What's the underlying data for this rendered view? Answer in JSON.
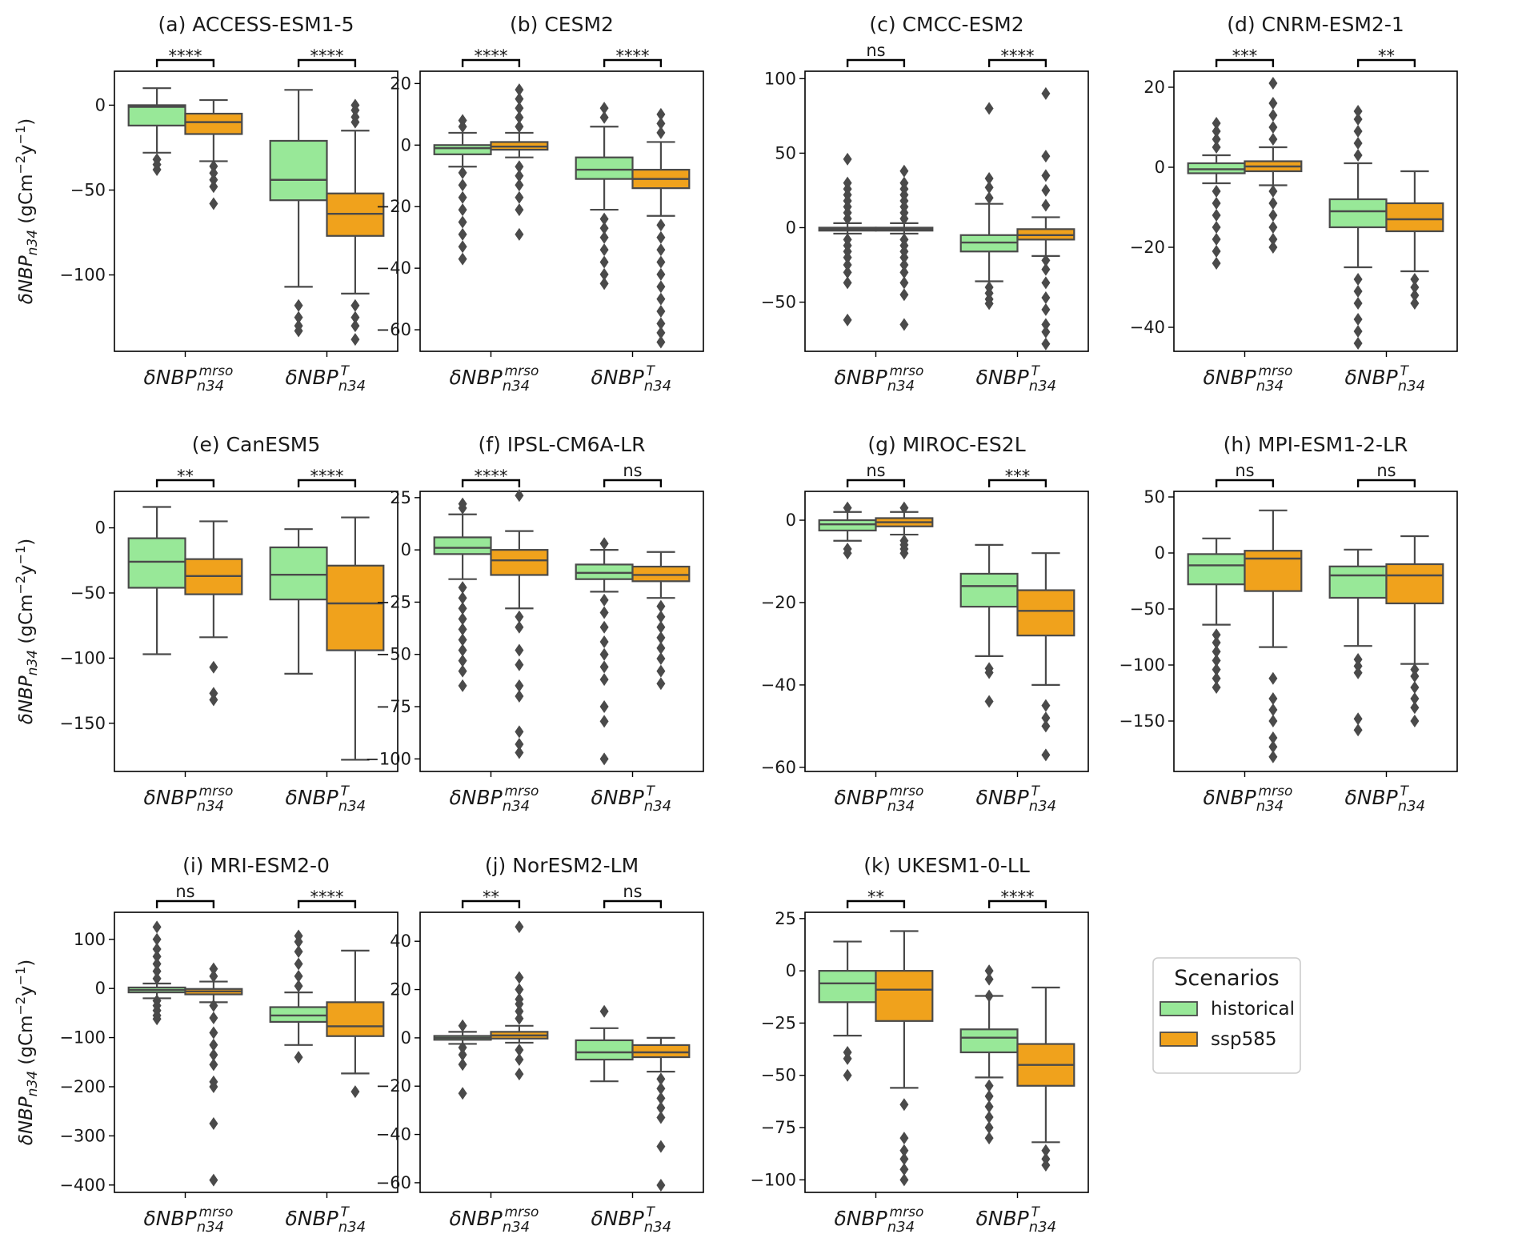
{
  "figure": {
    "ylabel": "δNBPn34 (gCm−2y−1)",
    "legend": {
      "title": "Scenarios",
      "items": [
        {
          "label": "historical",
          "color": "#98e898"
        },
        {
          "label": "ssp585",
          "color": "#f0a21c"
        }
      ]
    }
  },
  "chart_data": [
    {
      "type": "box",
      "title": "(a) ACCESS-ESM1-5",
      "categories": [
        "δNBPn34 mrso",
        "δNBPn34 T"
      ],
      "ylim": [
        -145,
        20
      ],
      "yticks": [
        0,
        -50,
        -100
      ],
      "significance": [
        "****",
        "****"
      ],
      "boxes": [
        {
          "category": 0,
          "scenario": "historical",
          "q1": -12,
          "median": -1,
          "q3": 0,
          "whislo": -28,
          "whishi": 10,
          "fliers": [
            -32,
            -35,
            -38
          ]
        },
        {
          "category": 0,
          "scenario": "ssp585",
          "q1": -17,
          "median": -10,
          "q3": -5,
          "whislo": -33,
          "whishi": 3,
          "fliers": [
            -36,
            -40,
            -44,
            -48,
            -58
          ]
        },
        {
          "category": 1,
          "scenario": "historical",
          "q1": -56,
          "median": -44,
          "q3": -21,
          "whislo": -107,
          "whishi": 9,
          "fliers": [
            -118,
            -125,
            -130,
            -133
          ]
        },
        {
          "category": 1,
          "scenario": "ssp585",
          "q1": -77,
          "median": -64,
          "q3": -52,
          "whislo": -111,
          "whishi": -15,
          "fliers": [
            -10,
            -7,
            -3,
            0,
            -118,
            -125,
            -130,
            -138
          ]
        }
      ]
    },
    {
      "type": "box",
      "title": "(b) CESM2",
      "categories": [
        "δNBPn34 mrso",
        "δNBPn34 T"
      ],
      "ylim": [
        -67,
        24
      ],
      "yticks": [
        20,
        0,
        -20,
        -40,
        -60
      ],
      "significance": [
        "****",
        "****"
      ],
      "boxes": [
        {
          "category": 0,
          "scenario": "historical",
          "q1": -3,
          "median": -1,
          "q3": 0,
          "whislo": -7,
          "whishi": 4,
          "fliers": [
            6,
            8,
            -9,
            -13,
            -17,
            -21,
            -25,
            -29,
            -33,
            -37
          ]
        },
        {
          "category": 0,
          "scenario": "ssp585",
          "q1": -1.5,
          "median": -0.5,
          "q3": 1,
          "whislo": -4,
          "whishi": 4,
          "fliers": [
            6,
            9,
            12,
            15,
            18,
            -7,
            -10,
            -13,
            -17,
            -21,
            -29
          ]
        },
        {
          "category": 1,
          "scenario": "historical",
          "q1": -11,
          "median": -8,
          "q3": -4,
          "whislo": -21,
          "whishi": 6,
          "fliers": [
            9,
            12,
            -24,
            -27,
            -30,
            -34,
            -38,
            -42,
            -45
          ]
        },
        {
          "category": 1,
          "scenario": "ssp585",
          "q1": -14,
          "median": -11,
          "q3": -8,
          "whislo": -23,
          "whishi": 1,
          "fliers": [
            4,
            7,
            10,
            -26,
            -30,
            -34,
            -38,
            -42,
            -46,
            -50,
            -54,
            -58,
            -61,
            -64
          ]
        }
      ]
    },
    {
      "type": "box",
      "title": "(c) CMCC-ESM2",
      "categories": [
        "δNBPn34 mrso",
        "δNBPn34 T"
      ],
      "ylim": [
        -83,
        105
      ],
      "yticks": [
        100,
        50,
        0,
        -50
      ],
      "significance": [
        "ns",
        "****"
      ],
      "boxes": [
        {
          "category": 0,
          "scenario": "historical",
          "q1": -2,
          "median": -1,
          "q3": 0,
          "whislo": -4,
          "whishi": 3,
          "fliers": [
            6,
            10,
            14,
            18,
            22,
            26,
            30,
            46,
            -8,
            -12,
            -16,
            -20,
            -25,
            -30,
            -37,
            -62
          ]
        },
        {
          "category": 0,
          "scenario": "ssp585",
          "q1": -2,
          "median": -1,
          "q3": 0,
          "whislo": -4,
          "whishi": 3,
          "fliers": [
            6,
            10,
            14,
            18,
            22,
            26,
            30,
            38,
            -8,
            -12,
            -16,
            -20,
            -25,
            -30,
            -37,
            -45,
            -65
          ]
        },
        {
          "category": 1,
          "scenario": "historical",
          "q1": -16,
          "median": -10,
          "q3": -5,
          "whislo": -36,
          "whishi": 16,
          "fliers": [
            20,
            27,
            33,
            80,
            -40,
            -44,
            -48,
            -51
          ]
        },
        {
          "category": 1,
          "scenario": "ssp585",
          "q1": -8,
          "median": -5,
          "q3": -1,
          "whislo": -19,
          "whishi": 7,
          "fliers": [
            15,
            25,
            35,
            48,
            90,
            -22,
            -28,
            -37,
            -47,
            -55,
            -65,
            -70,
            -78
          ]
        }
      ]
    },
    {
      "type": "box",
      "title": "(d) CNRM-ESM2-1",
      "categories": [
        "δNBPn34 mrso",
        "δNBPn34 T"
      ],
      "ylim": [
        -46,
        24
      ],
      "yticks": [
        20,
        0,
        -20,
        -40
      ],
      "significance": [
        "***",
        "**"
      ],
      "boxes": [
        {
          "category": 0,
          "scenario": "historical",
          "q1": -1.5,
          "median": -0.5,
          "q3": 1,
          "whislo": -4,
          "whishi": 3,
          "fliers": [
            5,
            7,
            9,
            11,
            -6,
            -9,
            -12,
            -15,
            -18,
            -21,
            -24
          ]
        },
        {
          "category": 0,
          "scenario": "ssp585",
          "q1": -1,
          "median": 0.2,
          "q3": 1.5,
          "whislo": -4.5,
          "whishi": 5,
          "fliers": [
            7,
            10,
            13,
            16,
            21,
            -6,
            -9,
            -12,
            -15,
            -18,
            -20
          ]
        },
        {
          "category": 1,
          "scenario": "historical",
          "q1": -15,
          "median": -11,
          "q3": -8,
          "whislo": -25,
          "whishi": 1,
          "fliers": [
            3,
            6,
            9,
            12,
            14,
            -28,
            -31,
            -34,
            -38,
            -41,
            -44
          ]
        },
        {
          "category": 1,
          "scenario": "ssp585",
          "q1": -16,
          "median": -13,
          "q3": -9,
          "whislo": -26,
          "whishi": -1,
          "fliers": [
            -28,
            -30,
            -32,
            -34
          ]
        }
      ]
    },
    {
      "type": "box",
      "title": "(e) CanESM5",
      "categories": [
        "δNBPn34 mrso",
        "δNBPn34 T"
      ],
      "ylim": [
        -187,
        28
      ],
      "yticks": [
        0,
        -50,
        -100,
        -150
      ],
      "significance": [
        "**",
        "****"
      ],
      "boxes": [
        {
          "category": 0,
          "scenario": "historical",
          "q1": -46,
          "median": -26,
          "q3": -8,
          "whislo": -97,
          "whishi": 16,
          "fliers": []
        },
        {
          "category": 0,
          "scenario": "ssp585",
          "q1": -51,
          "median": -37,
          "q3": -24,
          "whislo": -84,
          "whishi": 5,
          "fliers": [
            -107,
            -127,
            -132
          ]
        },
        {
          "category": 1,
          "scenario": "historical",
          "q1": -55,
          "median": -36,
          "q3": -15,
          "whislo": -112,
          "whishi": -1,
          "fliers": []
        },
        {
          "category": 1,
          "scenario": "ssp585",
          "q1": -94,
          "median": -58,
          "q3": -29,
          "whislo": -178,
          "whishi": 8,
          "fliers": []
        }
      ]
    },
    {
      "type": "box",
      "title": "(f) IPSL-CM6A-LR",
      "categories": [
        "δNBPn34 mrso",
        "δNBPn34 T"
      ],
      "ylim": [
        -106,
        28
      ],
      "yticks": [
        25,
        0,
        -25,
        -50,
        -75,
        -100
      ],
      "significance": [
        "****",
        "ns"
      ],
      "boxes": [
        {
          "category": 0,
          "scenario": "historical",
          "q1": -2,
          "median": 1,
          "q3": 6,
          "whislo": -14,
          "whishi": 17,
          "fliers": [
            20,
            22,
            -18,
            -23,
            -28,
            -33,
            -38,
            -43,
            -48,
            -53,
            -58,
            -65
          ]
        },
        {
          "category": 0,
          "scenario": "ssp585",
          "q1": -12,
          "median": -5,
          "q3": 0,
          "whislo": -28,
          "whishi": 9,
          "fliers": [
            26,
            -32,
            -37,
            -48,
            -55,
            -65,
            -70,
            -87,
            -93,
            -97
          ]
        },
        {
          "category": 1,
          "scenario": "historical",
          "q1": -14,
          "median": -11,
          "q3": -7,
          "whislo": -20,
          "whishi": 0,
          "fliers": [
            3,
            -24,
            -30,
            -37,
            -44,
            -50,
            -56,
            -62,
            -75,
            -82,
            -100
          ]
        },
        {
          "category": 1,
          "scenario": "ssp585",
          "q1": -15,
          "median": -12,
          "q3": -8,
          "whislo": -23,
          "whishi": -1,
          "fliers": [
            -27,
            -32,
            -37,
            -42,
            -47,
            -52,
            -58,
            -64
          ]
        }
      ]
    },
    {
      "type": "box",
      "title": "(g) MIROC-ES2L",
      "categories": [
        "δNBPn34 mrso",
        "δNBPn34 T"
      ],
      "ylim": [
        -61,
        7
      ],
      "yticks": [
        0,
        -20,
        -40,
        -60
      ],
      "significance": [
        "ns",
        "***"
      ],
      "boxes": [
        {
          "category": 0,
          "scenario": "historical",
          "q1": -2.5,
          "median": -1,
          "q3": 0,
          "whislo": -5,
          "whishi": 2,
          "fliers": [
            3,
            -7,
            -8
          ]
        },
        {
          "category": 0,
          "scenario": "ssp585",
          "q1": -1.5,
          "median": -0.5,
          "q3": 0.5,
          "whislo": -3.5,
          "whishi": 2,
          "fliers": [
            3,
            -5,
            -6,
            -7,
            -8
          ]
        },
        {
          "category": 1,
          "scenario": "historical",
          "q1": -21,
          "median": -16,
          "q3": -13,
          "whislo": -33,
          "whishi": -6,
          "fliers": [
            -36,
            -37,
            -44
          ]
        },
        {
          "category": 1,
          "scenario": "ssp585",
          "q1": -28,
          "median": -22,
          "q3": -17,
          "whislo": -40,
          "whishi": -8,
          "fliers": [
            -45,
            -48,
            -50,
            -57
          ]
        }
      ]
    },
    {
      "type": "box",
      "title": "(h) MPI-ESM1-2-LR",
      "categories": [
        "δNBPn34 mrso",
        "δNBPn34 T"
      ],
      "ylim": [
        -195,
        55
      ],
      "yticks": [
        50,
        0,
        -50,
        -100,
        -150
      ],
      "significance": [
        "ns",
        "ns"
      ],
      "boxes": [
        {
          "category": 0,
          "scenario": "historical",
          "q1": -28,
          "median": -11,
          "q3": -1,
          "whislo": -64,
          "whishi": 13,
          "fliers": [
            -73,
            -80,
            -88,
            -96,
            -104,
            -112,
            -120
          ]
        },
        {
          "category": 0,
          "scenario": "ssp585",
          "q1": -34,
          "median": -5,
          "q3": 2,
          "whislo": -84,
          "whishi": 38,
          "fliers": [
            -112,
            -130,
            -140,
            -150,
            -165,
            -173,
            -182
          ]
        },
        {
          "category": 1,
          "scenario": "historical",
          "q1": -40,
          "median": -20,
          "q3": -12,
          "whislo": -83,
          "whishi": 3,
          "fliers": [
            -95,
            -101,
            -107,
            -148,
            -158
          ]
        },
        {
          "category": 1,
          "scenario": "ssp585",
          "q1": -45,
          "median": -20,
          "q3": -10,
          "whislo": -99,
          "whishi": 15,
          "fliers": [
            -104,
            -110,
            -120,
            -130,
            -138,
            -150
          ]
        }
      ]
    },
    {
      "type": "box",
      "title": "(i) MRI-ESM2-0",
      "categories": [
        "δNBPn34 mrso",
        "δNBPn34 T"
      ],
      "ylim": [
        -415,
        155
      ],
      "yticks": [
        100,
        0,
        -100,
        -200,
        -300,
        -400
      ],
      "significance": [
        "ns",
        "****"
      ],
      "boxes": [
        {
          "category": 0,
          "scenario": "historical",
          "q1": -8,
          "median": -3,
          "q3": 2,
          "whislo": -20,
          "whishi": 10,
          "fliers": [
            20,
            35,
            50,
            65,
            80,
            100,
            125,
            -25,
            -35,
            -45,
            -55,
            -62
          ]
        },
        {
          "category": 0,
          "scenario": "ssp585",
          "q1": -12,
          "median": -6,
          "q3": -1,
          "whislo": -28,
          "whishi": 14,
          "fliers": [
            25,
            40,
            -35,
            -60,
            -90,
            -115,
            -135,
            -155,
            -190,
            -200,
            -275,
            -390
          ]
        },
        {
          "category": 1,
          "scenario": "historical",
          "q1": -68,
          "median": -55,
          "q3": -38,
          "whislo": -115,
          "whishi": -8,
          "fliers": [
            5,
            25,
            50,
            75,
            95,
            107,
            -140
          ]
        },
        {
          "category": 1,
          "scenario": "ssp585",
          "q1": -97,
          "median": -77,
          "q3": -28,
          "whislo": -173,
          "whishi": 77,
          "fliers": [
            -210
          ]
        }
      ]
    },
    {
      "type": "box",
      "title": "(j) NorESM2-LM",
      "categories": [
        "δNBPn34 mrso",
        "δNBPn34 T"
      ],
      "ylim": [
        -64,
        52
      ],
      "yticks": [
        40,
        20,
        0,
        -20,
        -40,
        -60
      ],
      "significance": [
        "**",
        "ns"
      ],
      "boxes": [
        {
          "category": 0,
          "scenario": "historical",
          "q1": -0.8,
          "median": 0,
          "q3": 0.8,
          "whislo": -2.5,
          "whishi": 2.5,
          "fliers": [
            5,
            -4,
            -7,
            -11,
            -23
          ]
        },
        {
          "category": 0,
          "scenario": "ssp585",
          "q1": -0.3,
          "median": 1,
          "q3": 2.5,
          "whislo": -2,
          "whishi": 5,
          "fliers": [
            8,
            11,
            14,
            16,
            20,
            25,
            46,
            -5,
            -9,
            -15
          ]
        },
        {
          "category": 1,
          "scenario": "historical",
          "q1": -9,
          "median": -6,
          "q3": -1,
          "whislo": -18,
          "whishi": 4,
          "fliers": [
            11
          ]
        },
        {
          "category": 1,
          "scenario": "ssp585",
          "q1": -8,
          "median": -6,
          "q3": -3,
          "whislo": -14,
          "whishi": 0,
          "fliers": [
            -17,
            -21,
            -25,
            -29,
            -33,
            -45,
            -61
          ]
        }
      ]
    },
    {
      "type": "box",
      "title": "(k) UKESM1-0-LL",
      "categories": [
        "δNBPn34 mrso",
        "δNBPn34 T"
      ],
      "ylim": [
        -106,
        28
      ],
      "yticks": [
        25,
        0,
        -25,
        -50,
        -75,
        -100
      ],
      "significance": [
        "**",
        "****"
      ],
      "boxes": [
        {
          "category": 0,
          "scenario": "historical",
          "q1": -15,
          "median": -6,
          "q3": 0,
          "whislo": -31,
          "whishi": 14,
          "fliers": [
            -39,
            -42,
            -50
          ]
        },
        {
          "category": 0,
          "scenario": "ssp585",
          "q1": -24,
          "median": -9,
          "q3": 0,
          "whislo": -56,
          "whishi": 19,
          "fliers": [
            -64,
            -80,
            -86,
            -90,
            -95,
            -100
          ]
        },
        {
          "category": 1,
          "scenario": "historical",
          "q1": -39,
          "median": -32,
          "q3": -28,
          "whislo": -51,
          "whishi": -12,
          "fliers": [
            0,
            -4,
            -12,
            -55,
            -60,
            -65,
            -70,
            -75,
            -80
          ]
        },
        {
          "category": 1,
          "scenario": "ssp585",
          "q1": -55,
          "median": -45,
          "q3": -35,
          "whislo": -82,
          "whishi": -8,
          "fliers": [
            -86,
            -90,
            -93
          ]
        }
      ]
    }
  ]
}
